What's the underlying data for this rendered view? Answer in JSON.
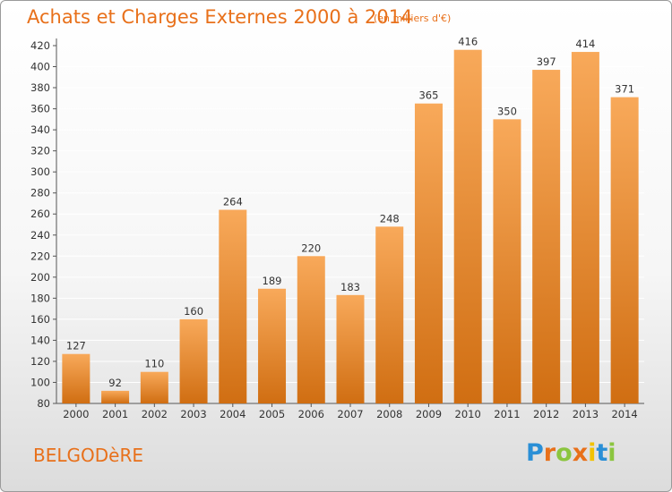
{
  "header": {
    "title": "Achats et Charges Externes 2000 à 2014",
    "subtitle": "(en milliers d'€)"
  },
  "footer": {
    "commune": "BELGODèRE",
    "logo_text": "Proxiti"
  },
  "colors": {
    "bar_top": "#f8a95a",
    "bar_bottom": "#d06e12",
    "accent": "#e8701a",
    "grid": "#ffffff",
    "label": "#333333"
  },
  "chart_data": {
    "type": "bar",
    "title": "Achats et Charges Externes 2000 à 2014",
    "subtitle": "(en milliers d'€)",
    "categories": [
      "2000",
      "2001",
      "2002",
      "2003",
      "2004",
      "2005",
      "2006",
      "2007",
      "2008",
      "2009",
      "2010",
      "2011",
      "2012",
      "2013",
      "2014"
    ],
    "values": [
      127,
      92,
      110,
      160,
      264,
      189,
      220,
      183,
      248,
      365,
      416,
      350,
      397,
      414,
      371
    ],
    "ylim": [
      80,
      420
    ],
    "yticks": [
      80,
      100,
      120,
      140,
      160,
      180,
      200,
      220,
      240,
      260,
      280,
      300,
      320,
      340,
      360,
      380,
      400,
      420
    ],
    "grid": true,
    "legend": "none",
    "xlabel": "",
    "ylabel": ""
  }
}
